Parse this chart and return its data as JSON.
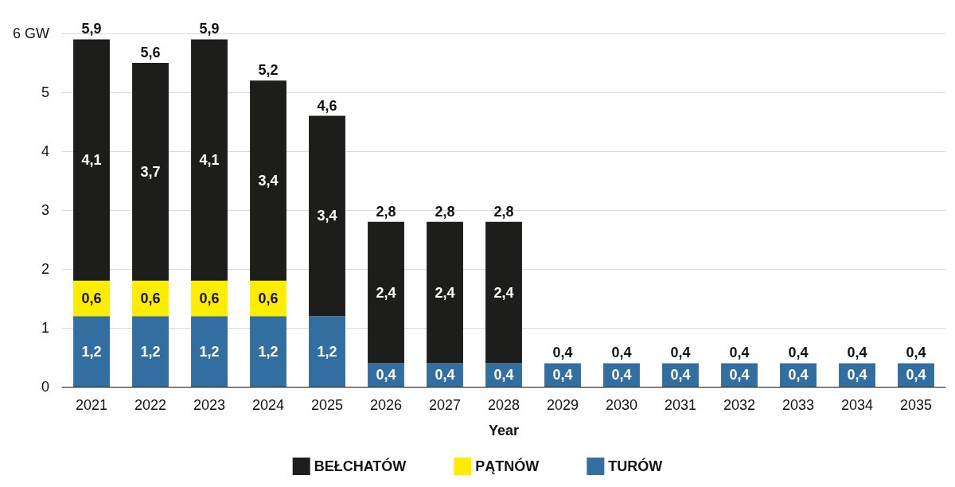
{
  "chart_data": {
    "type": "bar",
    "stacked": true,
    "xlabel": "Year",
    "categories": [
      "2021",
      "2022",
      "2023",
      "2024",
      "2025",
      "2026",
      "2027",
      "2028",
      "2029",
      "2030",
      "2031",
      "2032",
      "2033",
      "2034",
      "2035"
    ],
    "series": [
      {
        "name": "TURÓW",
        "color": "#336ea0",
        "values": [
          1.2,
          1.2,
          1.2,
          1.2,
          1.2,
          0.4,
          0.4,
          0.4,
          0.4,
          0.4,
          0.4,
          0.4,
          0.4,
          0.4,
          0.4
        ],
        "value_labels": [
          "1,2",
          "1,2",
          "1,2",
          "1,2",
          "1,2",
          "0,4",
          "0,4",
          "0,4",
          "0,4",
          "0,4",
          "0,4",
          "0,4",
          "0,4",
          "0,4",
          "0,4"
        ]
      },
      {
        "name": "PĄTNÓW",
        "color": "#ffed00",
        "values": [
          0.6,
          0.6,
          0.6,
          0.6,
          null,
          null,
          null,
          null,
          null,
          null,
          null,
          null,
          null,
          null,
          null
        ],
        "value_labels": [
          "0,6",
          "0,6",
          "0,6",
          "0,6",
          null,
          null,
          null,
          null,
          null,
          null,
          null,
          null,
          null,
          null,
          null
        ]
      },
      {
        "name": "BEŁCHATÓW",
        "color": "#1d1d1b",
        "values": [
          4.1,
          3.7,
          4.1,
          3.4,
          3.4,
          2.4,
          2.4,
          2.4,
          null,
          null,
          null,
          null,
          null,
          null,
          null
        ],
        "value_labels": [
          "4,1",
          "3,7",
          "4,1",
          "3,4",
          "3,4",
          "2,4",
          "2,4",
          "2,4",
          null,
          null,
          null,
          null,
          null,
          null,
          null
        ]
      }
    ],
    "totals": [
      "5,9",
      "5,6",
      "5,9",
      "5,2",
      "4,6",
      "2,8",
      "2,8",
      "2,8",
      "0,4",
      "0,4",
      "0,4",
      "0,4",
      "0,4",
      "0,4",
      "0,4"
    ],
    "ylim": [
      0,
      6
    ],
    "yticks": [
      0,
      1,
      2,
      3,
      4,
      5,
      {
        "value": 6,
        "label": "6 GW"
      }
    ],
    "grid": "y",
    "legend": "bottom"
  }
}
